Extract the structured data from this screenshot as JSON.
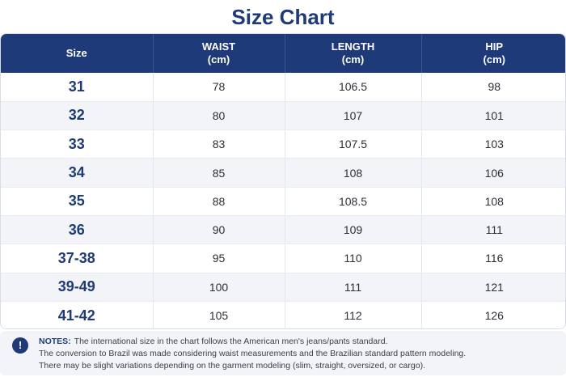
{
  "title": "Size Chart",
  "headers": {
    "size": "Size",
    "waist": "WAIST",
    "waist_unit": "(cm)",
    "length": "LENGTH",
    "length_unit": "(cm)",
    "hip": "HIP",
    "hip_unit": "(cm)"
  },
  "rows": [
    {
      "size": "31",
      "waist": "78",
      "length": "106.5",
      "hip": "98"
    },
    {
      "size": "32",
      "waist": "80",
      "length": "107",
      "hip": "101"
    },
    {
      "size": "33",
      "waist": "83",
      "length": "107.5",
      "hip": "103"
    },
    {
      "size": "34",
      "waist": "85",
      "length": "108",
      "hip": "106"
    },
    {
      "size": "35",
      "waist": "88",
      "length": "108.5",
      "hip": "108"
    },
    {
      "size": "36",
      "waist": "90",
      "length": "109",
      "hip": "111"
    },
    {
      "size": "37-38",
      "waist": "95",
      "length": "110",
      "hip": "116"
    },
    {
      "size": "39-49",
      "waist": "100",
      "length": "111",
      "hip": "121"
    },
    {
      "size": "41-42",
      "waist": "105",
      "length": "112",
      "hip": "126"
    }
  ],
  "notes": {
    "icon": "info-icon",
    "icon_glyph": "!",
    "label": "NOTES:",
    "line1": "The international size in the chart follows the American men's jeans/pants standard.",
    "line2": "The conversion to Brazil was made considering waist measurements and the Brazilian standard pattern modeling.",
    "line3": "There may be slight variations depending on the garment modeling (slim, straight, oversized, or cargo)."
  },
  "colors": {
    "accent": "#1e3a78",
    "row_alt": "#f2f4f8"
  }
}
